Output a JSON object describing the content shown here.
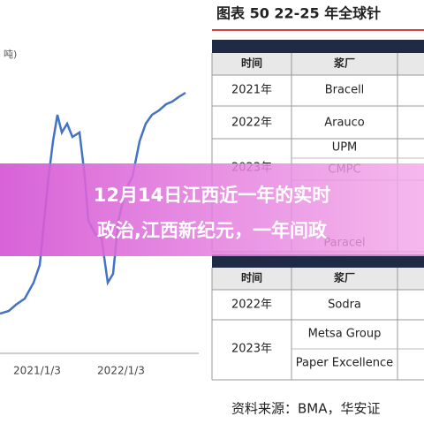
{
  "header": {
    "title": "图表 50 22-25 年全球针",
    "source": "资料来源：BMA，华安证"
  },
  "chart": {
    "unit_label": "吨)",
    "x_labels": [
      "2021/1/3",
      "2022/1/3"
    ]
  },
  "table1": {
    "headers": [
      "时间",
      "浆厂"
    ],
    "rows": [
      [
        "2021年",
        "Bracell"
      ],
      [
        "2022年",
        "Arauco"
      ],
      [
        "2023年",
        "UPM"
      ],
      [
        "",
        "CMPC"
      ],
      [
        "",
        "Paracel"
      ]
    ]
  },
  "table2": {
    "headers": [
      "时间",
      "浆厂"
    ],
    "rows": [
      [
        "2022年",
        "Sodra"
      ],
      [
        "2023年",
        "Metsa Group"
      ],
      [
        "",
        "Paper Excellence"
      ]
    ]
  },
  "overlay": {
    "lines": [
      "12月14日江西近一年的实时",
      "政治,江西新纪元，一年间政"
    ]
  }
}
